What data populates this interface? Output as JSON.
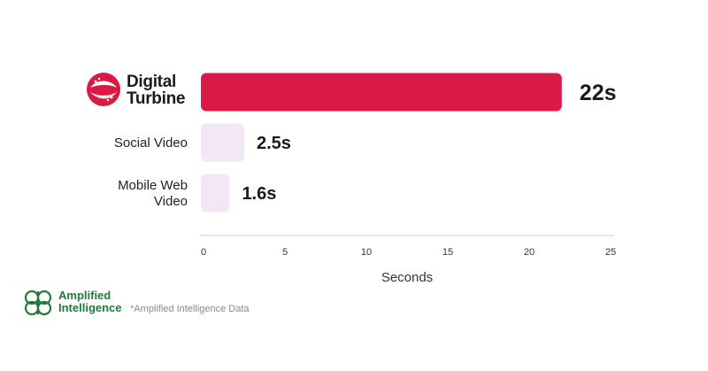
{
  "chart_data": {
    "type": "bar",
    "orientation": "horizontal",
    "categories": [
      "Digital Turbine",
      "Social Video",
      "Mobile Web Video"
    ],
    "values": [
      22,
      2.5,
      1.6
    ],
    "value_labels": [
      "22s",
      "2.5s",
      "1.6s"
    ],
    "xlabel": "Seconds",
    "xlim": [
      0,
      25
    ],
    "xticks": [
      0,
      5,
      10,
      15,
      20,
      25
    ],
    "grid": false
  },
  "brand": {
    "digital_turbine": {
      "line1": "Digital",
      "line2": "Turbine"
    },
    "amplified_intelligence": {
      "line1": "Amplified",
      "line2": "Intelligence"
    }
  },
  "footnote": "*Amplified Intelligence Data",
  "colors": {
    "highlight_bar": "#d91a45",
    "other_bars": "#f1e8f3",
    "logo_red": "#d91a45",
    "logo_green": "#1f7a3c",
    "axis": "#cccccc",
    "text": "#1a1a1a"
  }
}
